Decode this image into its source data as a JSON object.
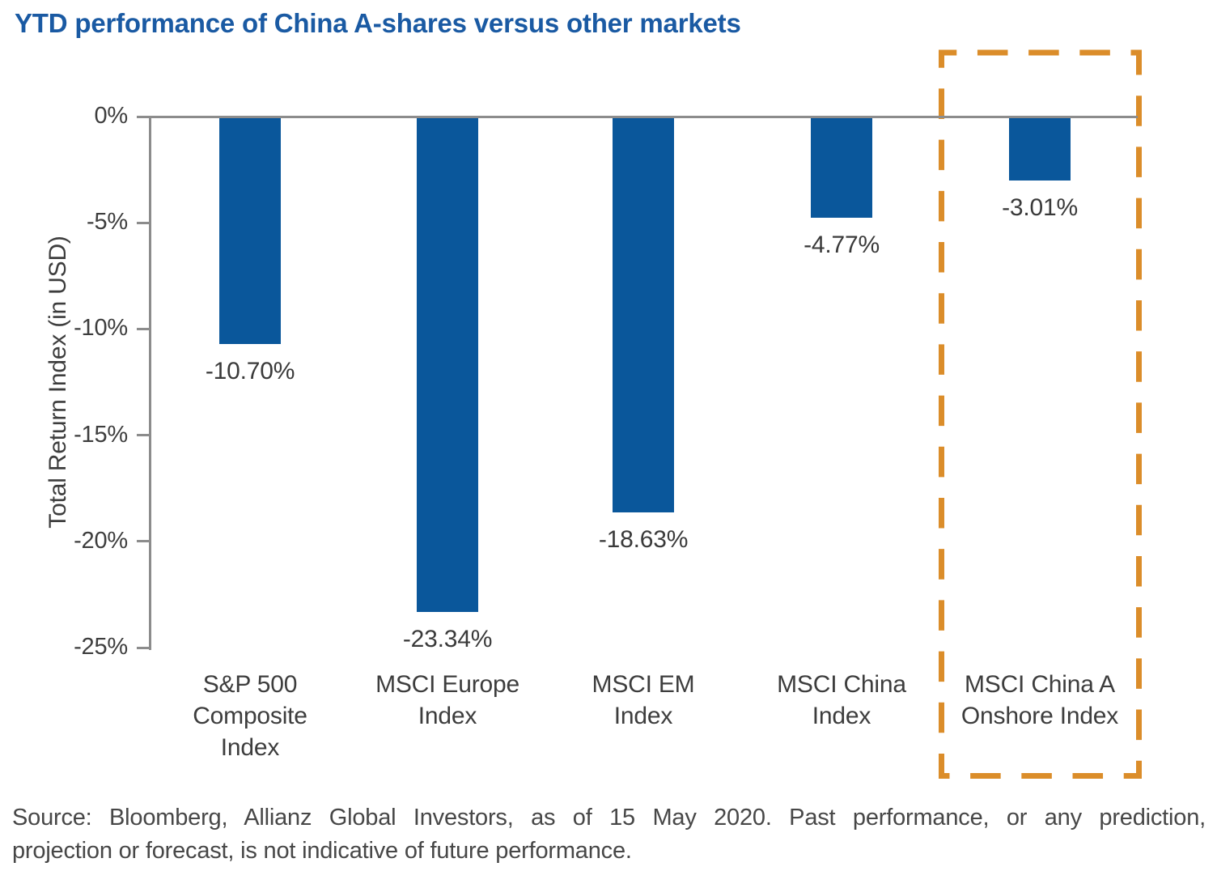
{
  "title": "YTD performance of China A-shares versus other markets",
  "chart_data": {
    "type": "bar",
    "title": "YTD performance of China A-shares versus other markets",
    "xlabel": "",
    "ylabel": "Total Return Index (in USD)",
    "ylim": [
      -25,
      0
    ],
    "grid": false,
    "legend": false,
    "yticks": [
      {
        "value": 0,
        "label": "0%"
      },
      {
        "value": -5,
        "label": "-5%"
      },
      {
        "value": -10,
        "label": "-10%"
      },
      {
        "value": -15,
        "label": "-15%"
      },
      {
        "value": -20,
        "label": "-20%"
      },
      {
        "value": -25,
        "label": "-25%"
      }
    ],
    "categories": [
      "S&P 500 Composite Index",
      "MSCI Europe Index",
      "MSCI EM Index",
      "MSCI China Index",
      "MSCI China A Onshore Index"
    ],
    "category_lines": [
      [
        "S&P 500",
        "Composite",
        "Index"
      ],
      [
        "MSCI Europe",
        "Index"
      ],
      [
        "MSCI EM",
        "Index"
      ],
      [
        "MSCI China",
        "Index"
      ],
      [
        "MSCI China A",
        "Onshore Index"
      ]
    ],
    "values": [
      -10.7,
      -23.34,
      -18.63,
      -4.77,
      -3.01
    ],
    "value_labels": [
      "-10.70%",
      "-23.34%",
      "-18.63%",
      "-4.77%",
      "-3.01%"
    ],
    "highlight": {
      "category": "MSCI China A Onshore Index",
      "style": "dashed-box",
      "color": "#DB8D2A"
    },
    "colors": {
      "bar": "#0A579B",
      "axis": "#8C8C8C",
      "title": "#1A5AA3",
      "labels": "#3D3D3D",
      "highlight_box": "#DB8D2A"
    }
  },
  "source": {
    "line1": "Source: Bloomberg, Allianz Global Investors, as of 15 May 2020. Past performance, or any prediction,",
    "line2": "projection or forecast, is not indicative of future performance."
  }
}
